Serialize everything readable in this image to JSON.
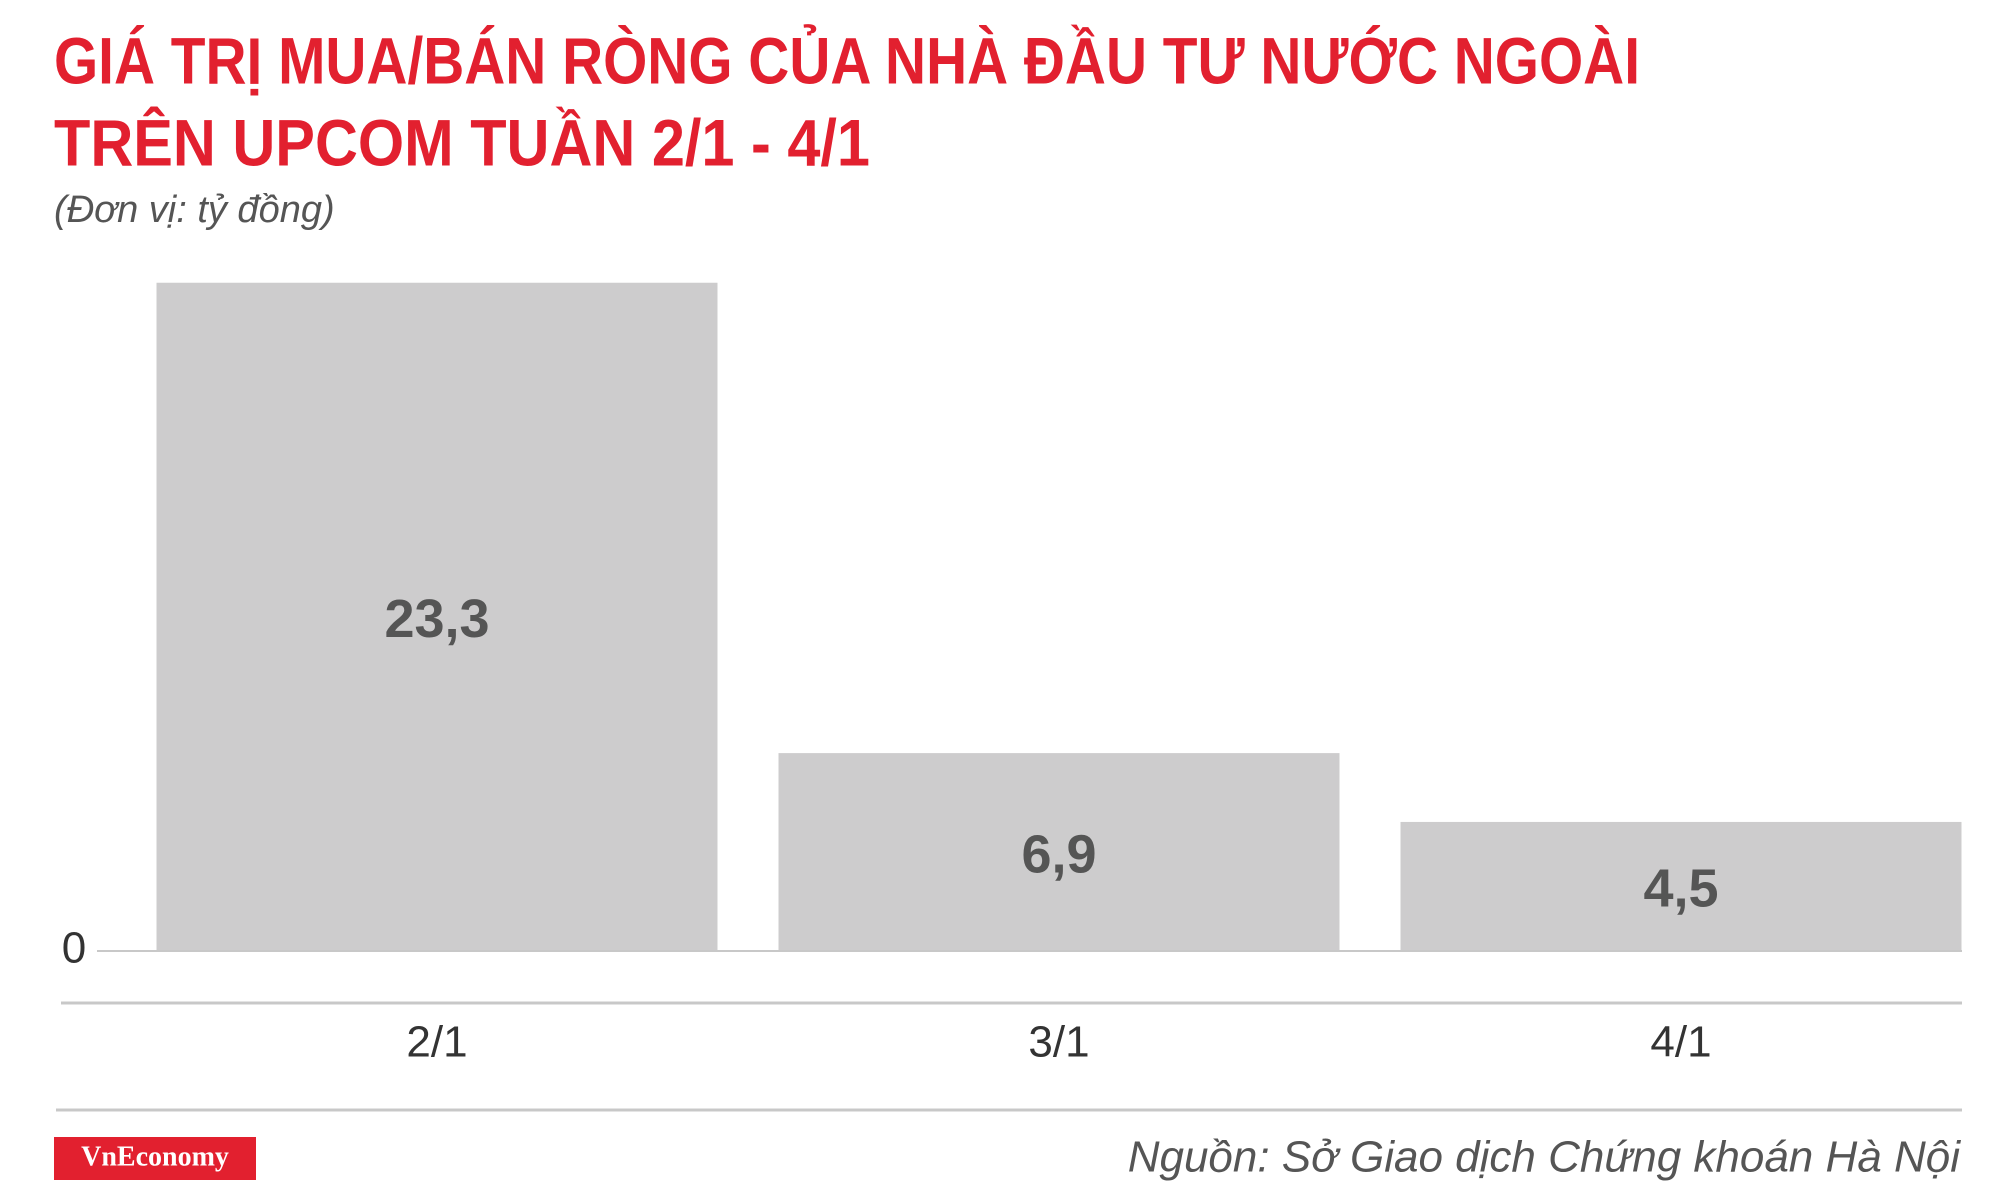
{
  "chart_data": {
    "type": "bar",
    "title": [
      "GIÁ TRỊ MUA/BÁN RÒNG CỦA NHÀ ĐẦU TƯ NƯỚC NGOÀI",
      "TRÊN UPCOM TUẦN 2/1 - 4/1"
    ],
    "subtitle": "(Đơn vị: tỷ đồng)",
    "categories": [
      "2/1",
      "3/1",
      "4/1"
    ],
    "values": [
      23.3,
      6.9,
      4.5
    ],
    "value_labels": [
      "23,3",
      "6,9",
      "4,5"
    ],
    "color": "#cdcccd",
    "ylim": [
      0,
      25
    ],
    "yticks": [
      0
    ],
    "grid": false,
    "source": "Nguồn: Sở Giao dịch Chứng khoán Hà Nội",
    "logo": "VnEconomy"
  }
}
